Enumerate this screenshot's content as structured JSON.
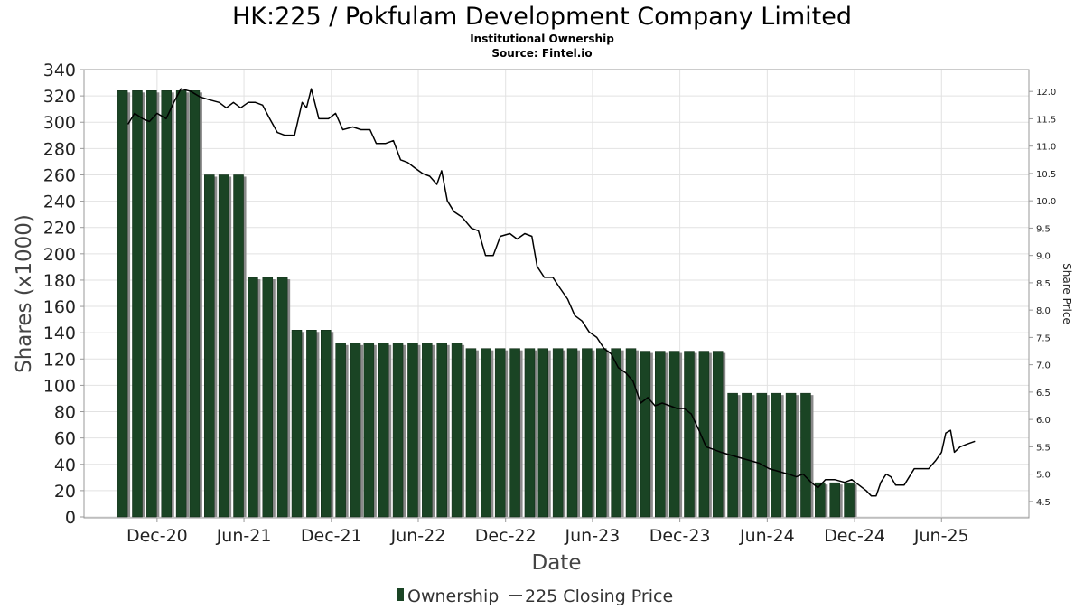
{
  "chart_data": {
    "type": "bar+line",
    "title": "HK:225 / Pokfulam Development Company Limited",
    "subtitle": "Institutional Ownership",
    "source": "Source: Fintel.io",
    "xlabel": "Date",
    "ylabel": "Shares (x1000)",
    "y2label": "Share Price",
    "ylim": [
      0,
      340
    ],
    "y2lim": [
      4.2,
      12.4
    ],
    "yticks": [
      0,
      20,
      40,
      60,
      80,
      100,
      120,
      140,
      160,
      180,
      200,
      220,
      240,
      260,
      280,
      300,
      320,
      340
    ],
    "y2ticks": [
      4.5,
      5.0,
      5.5,
      6.0,
      6.5,
      7.0,
      7.5,
      8.0,
      8.5,
      9.0,
      9.5,
      10.0,
      10.5,
      11.0,
      11.5,
      12.0
    ],
    "y2tick_labels": [
      "4.5",
      "5.0",
      "5.5",
      "6.0",
      "6.5",
      "7.0",
      "7.5",
      "8.0",
      "8.5",
      "9.0",
      "9.5",
      "10.0",
      "10.5",
      "11.0",
      "11.5",
      "12.0"
    ],
    "xlim": [
      "2020-07-01",
      "2025-12-01"
    ],
    "xticks": [
      {
        "date": "2020-12-01",
        "label": "Dec-20"
      },
      {
        "date": "2021-06-01",
        "label": "Jun-21"
      },
      {
        "date": "2021-12-01",
        "label": "Dec-21"
      },
      {
        "date": "2022-06-01",
        "label": "Jun-22"
      },
      {
        "date": "2022-12-01",
        "label": "Dec-22"
      },
      {
        "date": "2023-06-01",
        "label": "Jun-23"
      },
      {
        "date": "2023-12-01",
        "label": "Dec-23"
      },
      {
        "date": "2024-06-01",
        "label": "Jun-24"
      },
      {
        "date": "2024-12-01",
        "label": "Dec-24"
      },
      {
        "date": "2025-06-01",
        "label": "Jun-25"
      }
    ],
    "grid": true,
    "legend_position": "bottom",
    "series": [
      {
        "name": "Ownership",
        "type": "bar",
        "color": "#1a4424",
        "points": [
          {
            "date": "2020-09-30",
            "value": 324
          },
          {
            "date": "2020-10-31",
            "value": 324
          },
          {
            "date": "2020-11-30",
            "value": 324
          },
          {
            "date": "2020-12-31",
            "value": 324
          },
          {
            "date": "2021-01-31",
            "value": 324
          },
          {
            "date": "2021-02-28",
            "value": 324
          },
          {
            "date": "2021-03-31",
            "value": 260
          },
          {
            "date": "2021-04-30",
            "value": 260
          },
          {
            "date": "2021-05-31",
            "value": 260
          },
          {
            "date": "2021-06-30",
            "value": 182
          },
          {
            "date": "2021-07-31",
            "value": 182
          },
          {
            "date": "2021-08-31",
            "value": 182
          },
          {
            "date": "2021-09-30",
            "value": 142
          },
          {
            "date": "2021-10-31",
            "value": 142
          },
          {
            "date": "2021-11-30",
            "value": 142
          },
          {
            "date": "2021-12-31",
            "value": 132
          },
          {
            "date": "2022-01-31",
            "value": 132
          },
          {
            "date": "2022-02-28",
            "value": 132
          },
          {
            "date": "2022-03-31",
            "value": 132
          },
          {
            "date": "2022-04-30",
            "value": 132
          },
          {
            "date": "2022-05-31",
            "value": 132
          },
          {
            "date": "2022-06-30",
            "value": 132
          },
          {
            "date": "2022-07-31",
            "value": 132
          },
          {
            "date": "2022-08-31",
            "value": 132
          },
          {
            "date": "2022-09-30",
            "value": 128
          },
          {
            "date": "2022-10-31",
            "value": 128
          },
          {
            "date": "2022-11-30",
            "value": 128
          },
          {
            "date": "2022-12-31",
            "value": 128
          },
          {
            "date": "2023-01-31",
            "value": 128
          },
          {
            "date": "2023-02-28",
            "value": 128
          },
          {
            "date": "2023-03-31",
            "value": 128
          },
          {
            "date": "2023-04-30",
            "value": 128
          },
          {
            "date": "2023-05-31",
            "value": 128
          },
          {
            "date": "2023-06-30",
            "value": 128
          },
          {
            "date": "2023-07-31",
            "value": 128
          },
          {
            "date": "2023-08-31",
            "value": 128
          },
          {
            "date": "2023-09-30",
            "value": 126
          },
          {
            "date": "2023-10-31",
            "value": 126
          },
          {
            "date": "2023-11-30",
            "value": 126
          },
          {
            "date": "2023-12-31",
            "value": 126
          },
          {
            "date": "2024-01-31",
            "value": 126
          },
          {
            "date": "2024-02-29",
            "value": 126
          },
          {
            "date": "2024-03-31",
            "value": 94
          },
          {
            "date": "2024-04-30",
            "value": 94
          },
          {
            "date": "2024-05-31",
            "value": 94
          },
          {
            "date": "2024-06-30",
            "value": 94
          },
          {
            "date": "2024-07-31",
            "value": 94
          },
          {
            "date": "2024-08-31",
            "value": 94
          },
          {
            "date": "2024-09-30",
            "value": 26
          },
          {
            "date": "2024-10-31",
            "value": 26
          },
          {
            "date": "2024-11-30",
            "value": 26
          }
        ]
      },
      {
        "name": "225 Closing Price",
        "type": "line",
        "axis": "right",
        "color": "#000000",
        "points": [
          {
            "date": "2020-10-01",
            "value": 11.4
          },
          {
            "date": "2020-10-15",
            "value": 11.6
          },
          {
            "date": "2020-11-01",
            "value": 11.5
          },
          {
            "date": "2020-11-15",
            "value": 11.45
          },
          {
            "date": "2020-12-01",
            "value": 11.6
          },
          {
            "date": "2020-12-20",
            "value": 11.5
          },
          {
            "date": "2021-01-05",
            "value": 11.8
          },
          {
            "date": "2021-01-20",
            "value": 12.05
          },
          {
            "date": "2021-02-10",
            "value": 12.0
          },
          {
            "date": "2021-03-01",
            "value": 11.9
          },
          {
            "date": "2021-03-20",
            "value": 11.85
          },
          {
            "date": "2021-04-10",
            "value": 11.8
          },
          {
            "date": "2021-04-25",
            "value": 11.7
          },
          {
            "date": "2021-05-10",
            "value": 11.8
          },
          {
            "date": "2021-05-25",
            "value": 11.7
          },
          {
            "date": "2021-06-10",
            "value": 11.8
          },
          {
            "date": "2021-06-25",
            "value": 11.8
          },
          {
            "date": "2021-07-10",
            "value": 11.75
          },
          {
            "date": "2021-07-25",
            "value": 11.5
          },
          {
            "date": "2021-08-10",
            "value": 11.25
          },
          {
            "date": "2021-08-25",
            "value": 11.2
          },
          {
            "date": "2021-09-15",
            "value": 11.2
          },
          {
            "date": "2021-10-01",
            "value": 11.8
          },
          {
            "date": "2021-10-10",
            "value": 11.7
          },
          {
            "date": "2021-10-20",
            "value": 12.05
          },
          {
            "date": "2021-11-05",
            "value": 11.5
          },
          {
            "date": "2021-11-25",
            "value": 11.5
          },
          {
            "date": "2021-12-10",
            "value": 11.6
          },
          {
            "date": "2021-12-25",
            "value": 11.3
          },
          {
            "date": "2022-01-15",
            "value": 11.35
          },
          {
            "date": "2022-02-01",
            "value": 11.3
          },
          {
            "date": "2022-02-20",
            "value": 11.3
          },
          {
            "date": "2022-03-05",
            "value": 11.05
          },
          {
            "date": "2022-03-25",
            "value": 11.05
          },
          {
            "date": "2022-04-10",
            "value": 11.1
          },
          {
            "date": "2022-04-25",
            "value": 10.75
          },
          {
            "date": "2022-05-10",
            "value": 10.7
          },
          {
            "date": "2022-05-25",
            "value": 10.6
          },
          {
            "date": "2022-06-10",
            "value": 10.5
          },
          {
            "date": "2022-06-25",
            "value": 10.45
          },
          {
            "date": "2022-07-10",
            "value": 10.3
          },
          {
            "date": "2022-07-20",
            "value": 10.55
          },
          {
            "date": "2022-08-01",
            "value": 10.0
          },
          {
            "date": "2022-08-15",
            "value": 9.8
          },
          {
            "date": "2022-09-01",
            "value": 9.7
          },
          {
            "date": "2022-09-20",
            "value": 9.5
          },
          {
            "date": "2022-10-05",
            "value": 9.45
          },
          {
            "date": "2022-10-20",
            "value": 9.0
          },
          {
            "date": "2022-11-05",
            "value": 9.0
          },
          {
            "date": "2022-11-20",
            "value": 9.35
          },
          {
            "date": "2022-12-10",
            "value": 9.4
          },
          {
            "date": "2022-12-25",
            "value": 9.3
          },
          {
            "date": "2023-01-10",
            "value": 9.4
          },
          {
            "date": "2023-01-25",
            "value": 9.35
          },
          {
            "date": "2023-02-05",
            "value": 8.8
          },
          {
            "date": "2023-02-20",
            "value": 8.6
          },
          {
            "date": "2023-03-10",
            "value": 8.6
          },
          {
            "date": "2023-03-25",
            "value": 8.4
          },
          {
            "date": "2023-04-10",
            "value": 8.2
          },
          {
            "date": "2023-04-25",
            "value": 7.9
          },
          {
            "date": "2023-05-10",
            "value": 7.8
          },
          {
            "date": "2023-05-25",
            "value": 7.6
          },
          {
            "date": "2023-06-10",
            "value": 7.5
          },
          {
            "date": "2023-06-25",
            "value": 7.3
          },
          {
            "date": "2023-07-10",
            "value": 7.2
          },
          {
            "date": "2023-07-25",
            "value": 6.95
          },
          {
            "date": "2023-08-10",
            "value": 6.85
          },
          {
            "date": "2023-08-25",
            "value": 6.7
          },
          {
            "date": "2023-09-10",
            "value": 6.3
          },
          {
            "date": "2023-09-25",
            "value": 6.4
          },
          {
            "date": "2023-10-10",
            "value": 6.25
          },
          {
            "date": "2023-10-25",
            "value": 6.3
          },
          {
            "date": "2023-11-10",
            "value": 6.25
          },
          {
            "date": "2023-11-25",
            "value": 6.2
          },
          {
            "date": "2023-12-10",
            "value": 6.2
          },
          {
            "date": "2023-12-25",
            "value": 6.1
          },
          {
            "date": "2024-01-10",
            "value": 5.8
          },
          {
            "date": "2024-01-25",
            "value": 5.5
          },
          {
            "date": "2024-02-10",
            "value": 5.45
          },
          {
            "date": "2024-02-25",
            "value": 5.4
          },
          {
            "date": "2024-03-15",
            "value": 5.35
          },
          {
            "date": "2024-04-05",
            "value": 5.3
          },
          {
            "date": "2024-04-25",
            "value": 5.25
          },
          {
            "date": "2024-05-15",
            "value": 5.2
          },
          {
            "date": "2024-06-05",
            "value": 5.1
          },
          {
            "date": "2024-06-25",
            "value": 5.05
          },
          {
            "date": "2024-07-15",
            "value": 5.0
          },
          {
            "date": "2024-08-01",
            "value": 4.95
          },
          {
            "date": "2024-08-15",
            "value": 5.0
          },
          {
            "date": "2024-09-01",
            "value": 4.85
          },
          {
            "date": "2024-09-15",
            "value": 4.75
          },
          {
            "date": "2024-10-01",
            "value": 4.9
          },
          {
            "date": "2024-10-20",
            "value": 4.9
          },
          {
            "date": "2024-11-10",
            "value": 4.85
          },
          {
            "date": "2024-11-25",
            "value": 4.9
          },
          {
            "date": "2024-12-10",
            "value": 4.8
          },
          {
            "date": "2024-12-25",
            "value": 4.7
          },
          {
            "date": "2025-01-05",
            "value": 4.6
          },
          {
            "date": "2025-01-15",
            "value": 4.6
          },
          {
            "date": "2025-01-25",
            "value": 4.85
          },
          {
            "date": "2025-02-05",
            "value": 5.0
          },
          {
            "date": "2025-02-15",
            "value": 4.95
          },
          {
            "date": "2025-02-25",
            "value": 4.8
          },
          {
            "date": "2025-03-15",
            "value": 4.8
          },
          {
            "date": "2025-04-05",
            "value": 5.1
          },
          {
            "date": "2025-04-20",
            "value": 5.1
          },
          {
            "date": "2025-05-05",
            "value": 5.1
          },
          {
            "date": "2025-05-20",
            "value": 5.25
          },
          {
            "date": "2025-06-01",
            "value": 5.4
          },
          {
            "date": "2025-06-10",
            "value": 5.75
          },
          {
            "date": "2025-06-20",
            "value": 5.8
          },
          {
            "date": "2025-06-28",
            "value": 5.4
          },
          {
            "date": "2025-07-10",
            "value": 5.5
          },
          {
            "date": "2025-07-25",
            "value": 5.55
          },
          {
            "date": "2025-08-10",
            "value": 5.6
          }
        ]
      }
    ],
    "legend": [
      {
        "label": "Ownership",
        "color": "#1a4424"
      },
      {
        "label": "225 Closing Price",
        "color": "#000000"
      }
    ]
  }
}
